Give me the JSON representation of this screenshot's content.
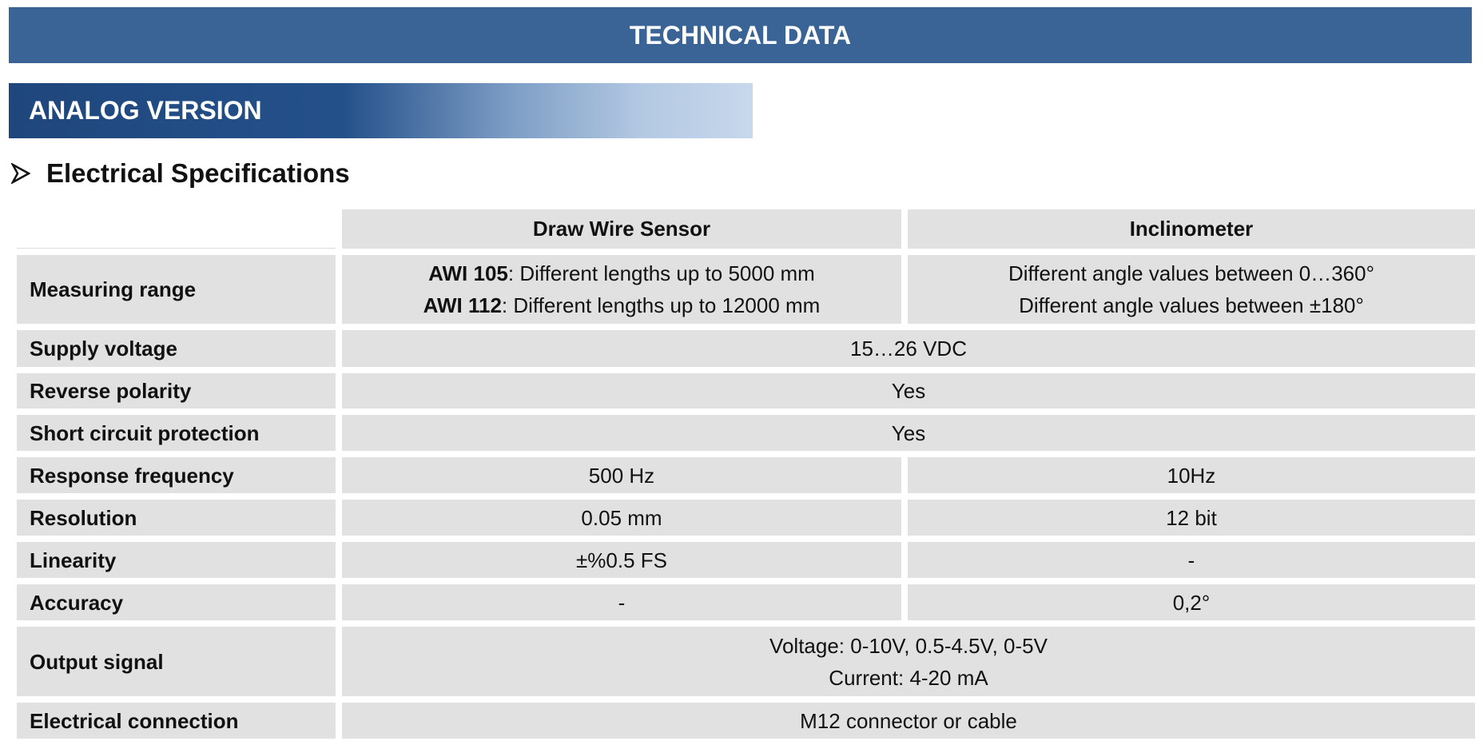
{
  "header": {
    "title": "TECHNICAL DATA"
  },
  "section": {
    "title": "ANALOG VERSION"
  },
  "subsection": {
    "title": "Electrical Specifications"
  },
  "table": {
    "columns": [
      "Draw Wire Sensor",
      "Inclinometer"
    ],
    "rows": [
      {
        "label": "Measuring range",
        "cells": [
          [
            {
              "bold": "AWI 105",
              "text": ": Different lengths up to 5000 mm"
            },
            {
              "bold": "AWI 112",
              "text": ": Different lengths up to 12000 mm"
            }
          ],
          [
            "Different angle values between 0…360°",
            "Different angle values between ±180°"
          ]
        ]
      },
      {
        "label": "Supply voltage",
        "cells": [
          [
            "15…26 VDC"
          ]
        ]
      },
      {
        "label": "Reverse polarity",
        "cells": [
          [
            "Yes"
          ]
        ]
      },
      {
        "label": "Short circuit protection",
        "cells": [
          [
            "Yes"
          ]
        ]
      },
      {
        "label": "Response frequency",
        "cells": [
          [
            "500 Hz"
          ],
          [
            "10Hz"
          ]
        ]
      },
      {
        "label": "Resolution",
        "cells": [
          [
            "0.05 mm"
          ],
          [
            "12 bit"
          ]
        ]
      },
      {
        "label": "Linearity",
        "cells": [
          [
            "±%0.5 FS"
          ],
          [
            "-"
          ]
        ]
      },
      {
        "label": "Accuracy",
        "cells": [
          [
            "-"
          ],
          [
            "0,2°"
          ]
        ]
      },
      {
        "label": "Output signal",
        "cells": [
          [
            "Voltage: 0-10V, 0.5-4.5V, 0-5V",
            "Current: 4-20 mA"
          ]
        ]
      },
      {
        "label": "Electrical connection",
        "cells": [
          [
            "M12 connector or cable"
          ]
        ]
      }
    ]
  }
}
